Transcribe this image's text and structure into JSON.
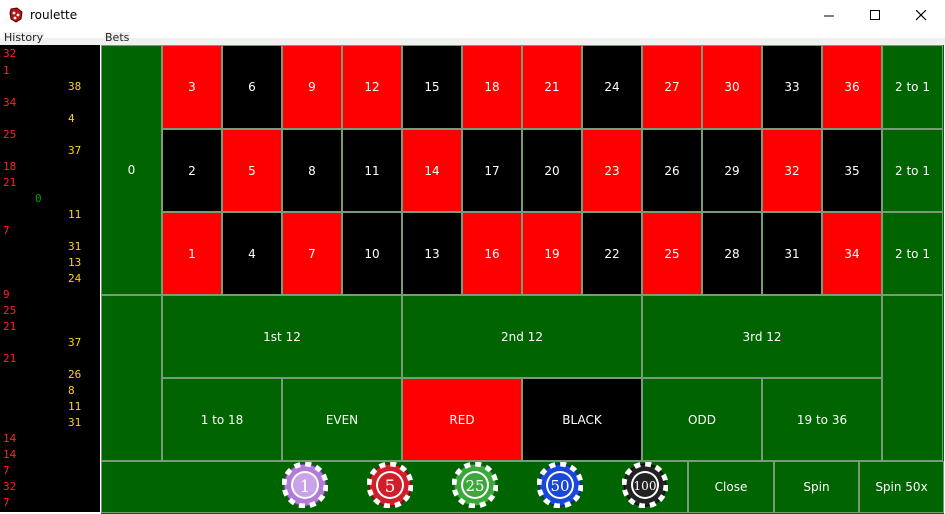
{
  "window": {
    "title": "roulette",
    "minimize_glyph": "—",
    "maximize_glyph": "☐",
    "close_glyph": "✕"
  },
  "groups": {
    "history_label": "History",
    "bets_label": "Bets"
  },
  "history": {
    "red": [
      "32",
      "1",
      "34",
      "25",
      "18",
      "21",
      "7",
      "9",
      "25",
      "21",
      "21",
      "14",
      "14",
      "7",
      "32",
      "7"
    ],
    "yellow": [
      "38",
      "4",
      "37",
      "11",
      "31",
      "13",
      "24",
      "37",
      "26",
      "8",
      "11",
      "31"
    ],
    "green": [
      "0"
    ]
  },
  "table": {
    "zero": "0",
    "row_top": [
      {
        "n": "3",
        "color": "red"
      },
      {
        "n": "6",
        "color": "black"
      },
      {
        "n": "9",
        "color": "red"
      },
      {
        "n": "12",
        "color": "red"
      },
      {
        "n": "15",
        "color": "black"
      },
      {
        "n": "18",
        "color": "red"
      },
      {
        "n": "21",
        "color": "red"
      },
      {
        "n": "24",
        "color": "black"
      },
      {
        "n": "27",
        "color": "red"
      },
      {
        "n": "30",
        "color": "red"
      },
      {
        "n": "33",
        "color": "black"
      },
      {
        "n": "36",
        "color": "red"
      }
    ],
    "row_mid": [
      {
        "n": "2",
        "color": "black"
      },
      {
        "n": "5",
        "color": "red"
      },
      {
        "n": "8",
        "color": "black"
      },
      {
        "n": "11",
        "color": "black"
      },
      {
        "n": "14",
        "color": "red"
      },
      {
        "n": "17",
        "color": "black"
      },
      {
        "n": "20",
        "color": "black"
      },
      {
        "n": "23",
        "color": "red"
      },
      {
        "n": "26",
        "color": "black"
      },
      {
        "n": "29",
        "color": "black"
      },
      {
        "n": "32",
        "color": "red"
      },
      {
        "n": "35",
        "color": "black"
      }
    ],
    "row_bot": [
      {
        "n": "1",
        "color": "red"
      },
      {
        "n": "4",
        "color": "black"
      },
      {
        "n": "7",
        "color": "red"
      },
      {
        "n": "10",
        "color": "black"
      },
      {
        "n": "13",
        "color": "black"
      },
      {
        "n": "16",
        "color": "red"
      },
      {
        "n": "19",
        "color": "red"
      },
      {
        "n": "22",
        "color": "black"
      },
      {
        "n": "25",
        "color": "red"
      },
      {
        "n": "28",
        "color": "black"
      },
      {
        "n": "31",
        "color": "black"
      },
      {
        "n": "34",
        "color": "red"
      }
    ],
    "column_bets": [
      "2 to 1",
      "2 to 1",
      "2 to 1"
    ],
    "dozens": [
      "1st 12",
      "2nd 12",
      "3rd 12"
    ],
    "outside": [
      "1 to 18",
      "EVEN",
      "RED",
      "BLACK",
      "ODD",
      "19 to 36"
    ]
  },
  "chips": [
    {
      "value": "1",
      "color": "#b07cd8"
    },
    {
      "value": "5",
      "color": "#d11f2a"
    },
    {
      "value": "25",
      "color": "#3aa83a"
    },
    {
      "value": "50",
      "color": "#1848d8"
    },
    {
      "value": "100",
      "color": "#222222"
    }
  ],
  "buttons": {
    "close": "Close",
    "spin": "Spin",
    "spin50": "Spin 50x"
  },
  "colors": {
    "felt": "#006400",
    "red": "#ff0000",
    "black": "#000000",
    "history_red": "#ff2020",
    "history_yellow": "#ffd21a",
    "history_green": "#00a000"
  }
}
